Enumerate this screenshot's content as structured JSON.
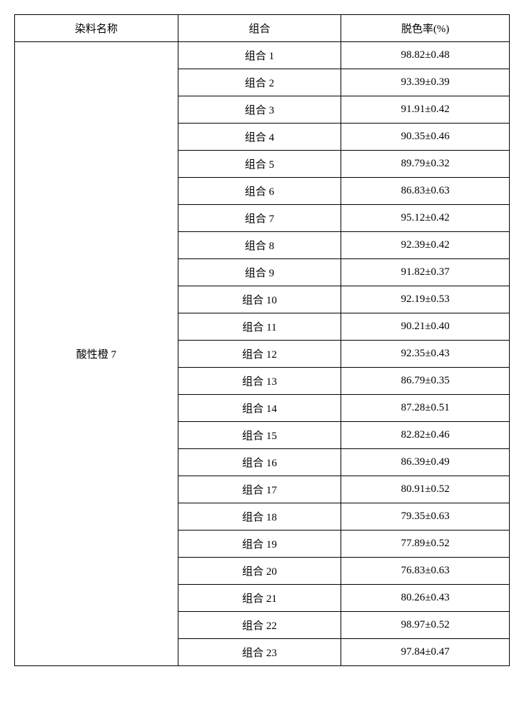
{
  "table": {
    "headers": {
      "dye_name": "染料名称",
      "combination": "组合",
      "decolorization_rate": "脱色率(%)"
    },
    "dye_label": "酸性橙 7",
    "rows": [
      {
        "combo": "组合 1",
        "rate": "98.82±0.48"
      },
      {
        "combo": "组合 2",
        "rate": "93.39±0.39"
      },
      {
        "combo": "组合 3",
        "rate": "91.91±0.42"
      },
      {
        "combo": "组合 4",
        "rate": "90.35±0.46"
      },
      {
        "combo": "组合 5",
        "rate": "89.79±0.32"
      },
      {
        "combo": "组合 6",
        "rate": "86.83±0.63"
      },
      {
        "combo": "组合 7",
        "rate": "95.12±0.42"
      },
      {
        "combo": "组合 8",
        "rate": "92.39±0.42"
      },
      {
        "combo": "组合 9",
        "rate": "91.82±0.37"
      },
      {
        "combo": "组合 10",
        "rate": "92.19±0.53"
      },
      {
        "combo": "组合 11",
        "rate": "90.21±0.40"
      },
      {
        "combo": "组合 12",
        "rate": "92.35±0.43"
      },
      {
        "combo": "组合 13",
        "rate": "86.79±0.35"
      },
      {
        "combo": "组合 14",
        "rate": "87.28±0.51"
      },
      {
        "combo": "组合 15",
        "rate": "82.82±0.46"
      },
      {
        "combo": "组合 16",
        "rate": "86.39±0.49"
      },
      {
        "combo": "组合 17",
        "rate": "80.91±0.52"
      },
      {
        "combo": "组合 18",
        "rate": "79.35±0.63"
      },
      {
        "combo": "组合 19",
        "rate": "77.89±0.52"
      },
      {
        "combo": "组合 20",
        "rate": "76.83±0.63"
      },
      {
        "combo": "组合 21",
        "rate": "80.26±0.43"
      },
      {
        "combo": "组合 22",
        "rate": "98.97±0.52"
      },
      {
        "combo": "组合 23",
        "rate": "97.84±0.47"
      }
    ]
  }
}
